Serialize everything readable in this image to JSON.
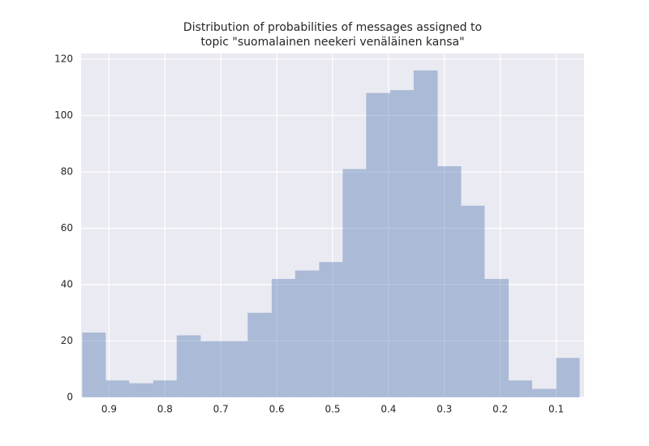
{
  "chart_data": {
    "type": "histogram",
    "title": [
      "Distribution of probabilities of messages assigned to",
      "topic \"suomalainen neekeri venäläinen kansa\""
    ],
    "bins": [
      0.058,
      0.1,
      0.143,
      0.185,
      0.228,
      0.27,
      0.312,
      0.355,
      0.397,
      0.44,
      0.482,
      0.524,
      0.567,
      0.609,
      0.652,
      0.694,
      0.736,
      0.779,
      0.821,
      0.864,
      0.906,
      0.948
    ],
    "counts": [
      14,
      3,
      6,
      42,
      68,
      82,
      116,
      109,
      108,
      81,
      48,
      45,
      42,
      30,
      20,
      20,
      22,
      6,
      5,
      6,
      23
    ],
    "color": "#4c72b0",
    "alpha": 0.4,
    "xlim": [
      0.95,
      0.05
    ],
    "xticks": [
      0.9,
      0.8,
      0.7,
      0.6,
      0.5,
      0.4,
      0.3,
      0.2,
      0.1
    ],
    "ylim": [
      0,
      122
    ],
    "yticks": [
      0,
      20,
      40,
      60,
      80,
      100,
      120
    ],
    "grid": true
  }
}
